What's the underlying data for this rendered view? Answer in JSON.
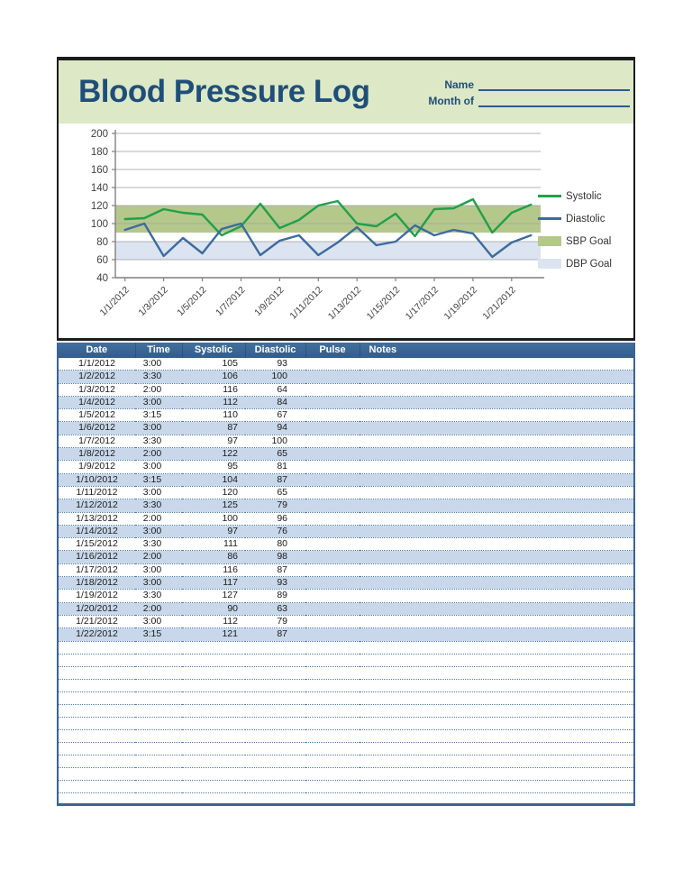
{
  "header": {
    "title": "Blood Pressure Log",
    "name_label": "Name",
    "month_label": "Month of"
  },
  "colors": {
    "banner_green": "#dce8c6",
    "title_blue": "#1f4e79",
    "table_header_blue": "#38648f",
    "row_alt_blue": "#c8d8ea",
    "dotted_rule_blue": "#4f7cab",
    "systolic_green": "#21a04a",
    "diastolic_blue": "#3d6b9e",
    "sbp_band": "#b4c88b",
    "dbp_band": "#dbe4f0"
  },
  "chart_data": {
    "type": "line",
    "x": [
      "1/1/2012",
      "1/2/2012",
      "1/3/2012",
      "1/4/2012",
      "1/5/2012",
      "1/6/2012",
      "1/7/2012",
      "1/8/2012",
      "1/9/2012",
      "1/10/2012",
      "1/11/2012",
      "1/12/2012",
      "1/13/2012",
      "1/14/2012",
      "1/15/2012",
      "1/16/2012",
      "1/17/2012",
      "1/18/2012",
      "1/19/2012",
      "1/20/2012",
      "1/21/2012",
      "1/22/2012"
    ],
    "x_tick_labels": [
      "1/1/2012",
      "1/3/2012",
      "1/5/2012",
      "1/7/2012",
      "1/9/2012",
      "1/11/2012",
      "1/13/2012",
      "1/15/2012",
      "1/17/2012",
      "1/19/2012",
      "1/21/2012"
    ],
    "series": [
      {
        "name": "Systolic",
        "color": "#21a04a",
        "values": [
          105,
          106,
          116,
          112,
          110,
          87,
          97,
          122,
          95,
          104,
          120,
          125,
          100,
          97,
          111,
          86,
          116,
          117,
          127,
          90,
          112,
          121
        ]
      },
      {
        "name": "Diastolic",
        "color": "#3d6b9e",
        "values": [
          93,
          100,
          64,
          84,
          67,
          94,
          100,
          65,
          81,
          87,
          65,
          79,
          96,
          76,
          80,
          98,
          87,
          93,
          89,
          63,
          79,
          87
        ]
      }
    ],
    "bands": [
      {
        "name": "SBP Goal",
        "from": 90,
        "to": 120,
        "color": "#b4c88b"
      },
      {
        "name": "DBP Goal",
        "from": 60,
        "to": 80,
        "color": "#dbe4f0"
      }
    ],
    "title": "",
    "xlabel": "",
    "ylabel": "",
    "ylim": [
      40,
      200
    ],
    "ytick_step": 20,
    "grid": true,
    "legend_position": "right"
  },
  "table": {
    "columns": [
      "Date",
      "Time",
      "Systolic",
      "Diastolic",
      "Pulse",
      "Notes"
    ],
    "rows": [
      [
        "1/1/2012",
        "3:00",
        "105",
        "93",
        "",
        ""
      ],
      [
        "1/2/2012",
        "3:30",
        "106",
        "100",
        "",
        ""
      ],
      [
        "1/3/2012",
        "2:00",
        "116",
        "64",
        "",
        ""
      ],
      [
        "1/4/2012",
        "3:00",
        "112",
        "84",
        "",
        ""
      ],
      [
        "1/5/2012",
        "3:15",
        "110",
        "67",
        "",
        ""
      ],
      [
        "1/6/2012",
        "3:00",
        "87",
        "94",
        "",
        ""
      ],
      [
        "1/7/2012",
        "3:30",
        "97",
        "100",
        "",
        ""
      ],
      [
        "1/8/2012",
        "2:00",
        "122",
        "65",
        "",
        ""
      ],
      [
        "1/9/2012",
        "3:00",
        "95",
        "81",
        "",
        ""
      ],
      [
        "1/10/2012",
        "3:15",
        "104",
        "87",
        "",
        ""
      ],
      [
        "1/11/2012",
        "3:00",
        "120",
        "65",
        "",
        ""
      ],
      [
        "1/12/2012",
        "3:30",
        "125",
        "79",
        "",
        ""
      ],
      [
        "1/13/2012",
        "2:00",
        "100",
        "96",
        "",
        ""
      ],
      [
        "1/14/2012",
        "3:00",
        "97",
        "76",
        "",
        ""
      ],
      [
        "1/15/2012",
        "3:30",
        "111",
        "80",
        "",
        ""
      ],
      [
        "1/16/2012",
        "2:00",
        "86",
        "98",
        "",
        ""
      ],
      [
        "1/17/2012",
        "3:00",
        "116",
        "87",
        "",
        ""
      ],
      [
        "1/18/2012",
        "3:00",
        "117",
        "93",
        "",
        ""
      ],
      [
        "1/19/2012",
        "3:30",
        "127",
        "89",
        "",
        ""
      ],
      [
        "1/20/2012",
        "2:00",
        "90",
        "63",
        "",
        ""
      ],
      [
        "1/21/2012",
        "3:00",
        "112",
        "79",
        "",
        ""
      ],
      [
        "1/22/2012",
        "3:15",
        "121",
        "87",
        "",
        ""
      ]
    ],
    "empty_row_count": 13
  }
}
